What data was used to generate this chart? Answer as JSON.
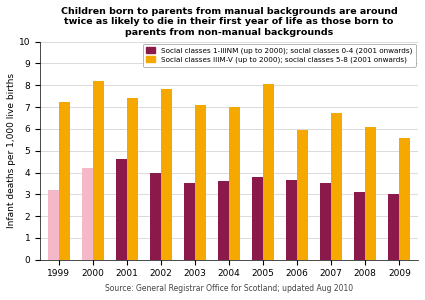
{
  "title": "Children born to parents from manual backgrounds are around\ntwice as likely to die in their first year of life as those born to\nparents from non-manual backgrounds",
  "years": [
    1999,
    2000,
    2001,
    2002,
    2003,
    2004,
    2005,
    2006,
    2007,
    2008,
    2009
  ],
  "non_manual": [
    3.2,
    4.2,
    4.6,
    4.0,
    3.5,
    3.6,
    3.8,
    3.65,
    3.5,
    3.1,
    3.0
  ],
  "manual": [
    7.25,
    8.2,
    7.4,
    7.85,
    7.1,
    7.0,
    8.05,
    5.95,
    6.75,
    6.1,
    5.6
  ],
  "non_manual_colors": [
    "#f5b8c8",
    "#f5b8c8",
    "#8b1a4a",
    "#8b1a4a",
    "#8b1a4a",
    "#8b1a4a",
    "#8b1a4a",
    "#8b1a4a",
    "#8b1a4a",
    "#8b1a4a",
    "#8b1a4a"
  ],
  "manual_colors": [
    "#f5a800",
    "#f5a800",
    "#f5a800",
    "#f5a800",
    "#f5a800",
    "#f5a800",
    "#f5a800",
    "#f5a800",
    "#f5a800",
    "#f5a800",
    "#f5a800"
  ],
  "ylabel": "Infant deaths per 1,000 live births",
  "ylim": [
    0,
    10
  ],
  "yticks": [
    0,
    1,
    2,
    3,
    4,
    5,
    6,
    7,
    8,
    9,
    10
  ],
  "legend_nonmanual_label": "Social classes 1-IIINM (up to 2000); social classes 0-4 (2001 onwards)",
  "legend_manual_label": "Social classes IIIM-V (up to 2000); social classes 5-8 (2001 onwards)",
  "legend_nonmanual_color": "#8b1a4a",
  "legend_manual_color": "#f5a800",
  "source": "Source: General Registrar Office for Scotland; updated Aug 2010",
  "background_color": "#ffffff",
  "bar_width": 0.32,
  "title_fontsize": 6.8,
  "axis_fontsize": 6.5,
  "legend_fontsize": 5.2,
  "source_fontsize": 5.5
}
